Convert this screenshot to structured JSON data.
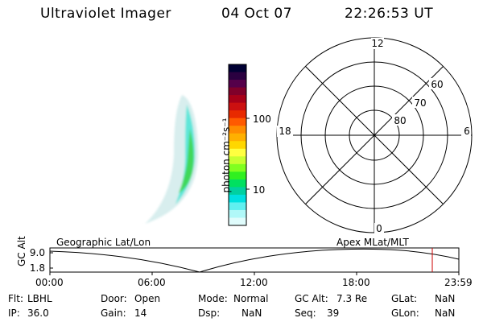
{
  "header": {
    "instrument": "Ultraviolet Imager",
    "date": "04 Oct 07",
    "time": "22:26:53 UT"
  },
  "colorbar": {
    "unit_label": "photon cm⁻²s⁻¹",
    "ticks": [
      "100",
      "10"
    ],
    "colors": [
      "#000033",
      "#2a0040",
      "#55004a",
      "#80002a",
      "#a80018",
      "#cc1010",
      "#e82a00",
      "#ff5a00",
      "#ff8c00",
      "#ffb000",
      "#ffd700",
      "#ffff40",
      "#c8ff30",
      "#80ff20",
      "#30f020",
      "#00e060",
      "#00d0a0",
      "#00e0e0",
      "#60f0f0",
      "#b0f8f8",
      "#e0fcfc"
    ]
  },
  "polar_plot": {
    "lat_labels": [
      "60",
      "70",
      "80"
    ],
    "mlt_labels": {
      "top": "12",
      "left": "18",
      "right": "6",
      "bottom": "0"
    }
  },
  "timeline": {
    "ylabel": "GC Alt",
    "ymax": "9.0",
    "ymin": "1.8",
    "left_label": "Geographic Lat/Lon",
    "right_label": "Apex MLat/MLT",
    "time_ticks": [
      "00:00",
      "06:00",
      "12:00",
      "18:00",
      "23:59"
    ],
    "marker_color": "#cc0000"
  },
  "status": {
    "flt_label": "Flt:",
    "flt_value": "LBHL",
    "door_label": "Door:",
    "door_value": "Open",
    "mode_label": "Mode:",
    "mode_value": "Normal",
    "gcalt_label": "GC Alt:",
    "gcalt_value": "7.3 Re",
    "glat_label": "GLat:",
    "glat_value": "NaN",
    "ip_label": "IP:",
    "ip_value": "36.0",
    "gain_label": "Gain:",
    "gain_value": "14",
    "dsp_label": "Dsp:",
    "dsp_value": "NaN",
    "seq_label": "Seq:",
    "seq_value": "39",
    "glon_label": "GLon:",
    "glon_value": "NaN"
  }
}
